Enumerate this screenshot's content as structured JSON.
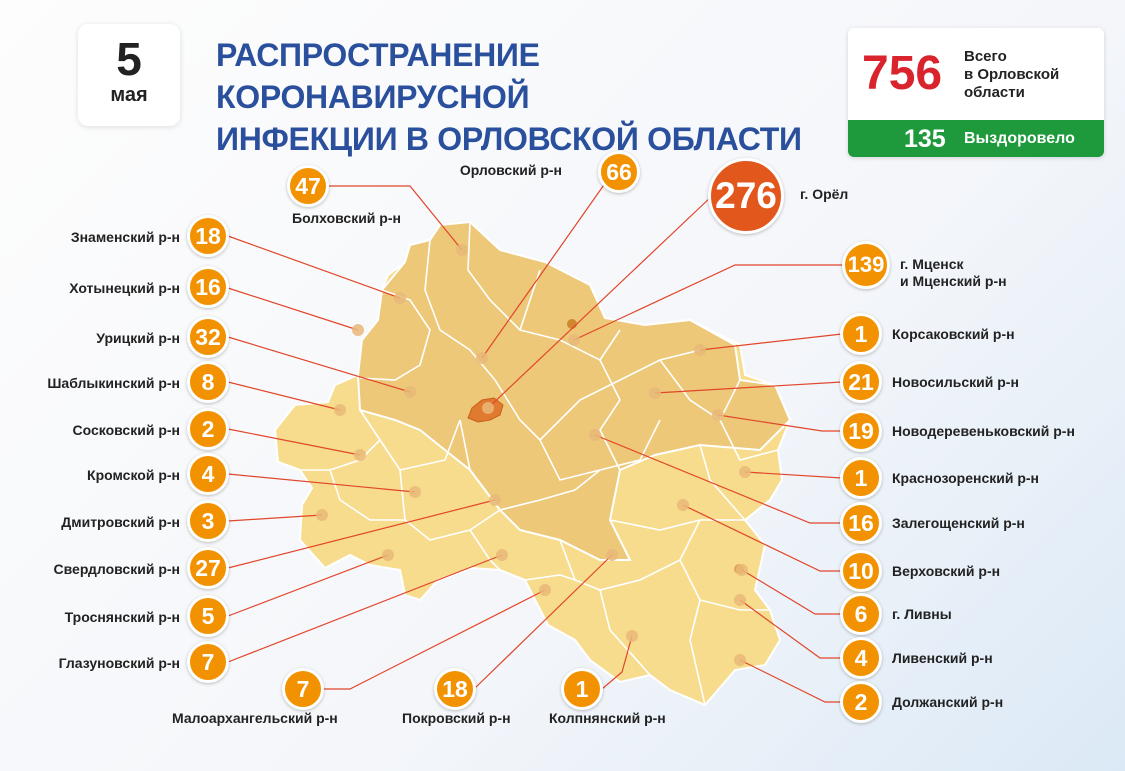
{
  "date": {
    "day": "5",
    "month": "мая"
  },
  "title": {
    "line1": "РАСПРОСТРАНЕНИЕ КОРОНАВИРУСНОЙ",
    "line2": "ИНФЕКЦИИ В ОРЛОВСКОЙ ОБЛАСТИ"
  },
  "totals": {
    "total_value": "756",
    "total_label": "Всего\nв Орловской\nобласти",
    "recovered_value": "135",
    "recovered_label": "Выздоровело"
  },
  "colors": {
    "badge": "#f39200",
    "city_badge": "#e2581c",
    "total": "#d9232d",
    "recovered": "#1e9a3c",
    "title": "#2a4f9c"
  },
  "districts": [
    {
      "name": "Орловский р-н",
      "value": "66"
    },
    {
      "name": "г. Орёл",
      "value": "276"
    },
    {
      "name": "Болховский р-н",
      "value": "47"
    },
    {
      "name": "г. Мценск\nи Мценский р-н",
      "value": "139"
    },
    {
      "name": "Знаменский р-н",
      "value": "18"
    },
    {
      "name": "Хотынецкий р-н",
      "value": "16"
    },
    {
      "name": "Урицкий р-н",
      "value": "32"
    },
    {
      "name": "Шаблыкинский р-н",
      "value": "8"
    },
    {
      "name": "Сосковский р-н",
      "value": "2"
    },
    {
      "name": "Кромской р-н",
      "value": "4"
    },
    {
      "name": "Дмитровский р-н",
      "value": "3"
    },
    {
      "name": "Свердловский р-н",
      "value": "27"
    },
    {
      "name": "Троснянский р-н",
      "value": "5"
    },
    {
      "name": "Глазуновский р-н",
      "value": "7"
    },
    {
      "name": "Малоархангельский р-н",
      "value": "7"
    },
    {
      "name": "Покровский р-н",
      "value": "18"
    },
    {
      "name": "Колпнянский р-н",
      "value": "1"
    },
    {
      "name": "Корсаковский р-н",
      "value": "1"
    },
    {
      "name": "Новосильский р-н",
      "value": "21"
    },
    {
      "name": "Новодеревеньковский р-н",
      "value": "19"
    },
    {
      "name": "Краснозоренский р-н",
      "value": "1"
    },
    {
      "name": "Залегощенский р-н",
      "value": "16"
    },
    {
      "name": "Верховский р-н",
      "value": "10"
    },
    {
      "name": "г. Ливны",
      "value": "6"
    },
    {
      "name": "Ливенский р-н",
      "value": "4"
    },
    {
      "name": "Должанский р-н",
      "value": "2"
    }
  ]
}
